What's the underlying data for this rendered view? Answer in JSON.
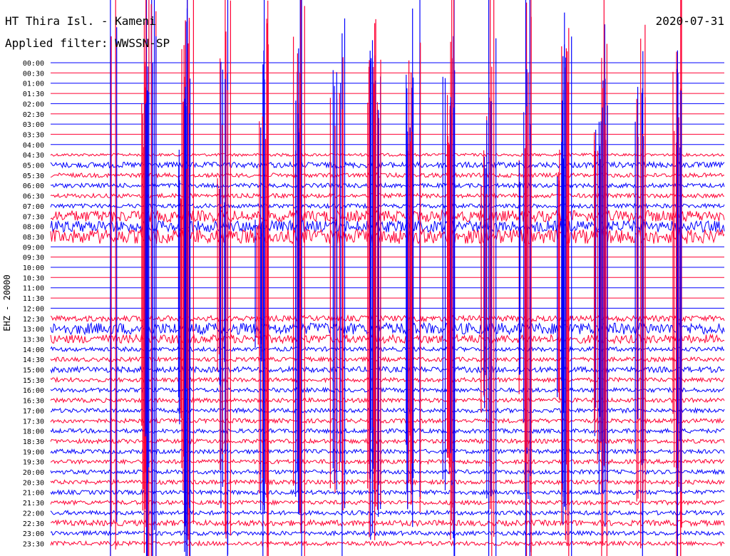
{
  "header": {
    "station": "HT Thira Isl. - Kameni",
    "filter": "Applied filter: WWSSN-SP",
    "date": "2020-07-31"
  },
  "ylabel": "EHZ - 20000",
  "colors": {
    "blue": "#0000ff",
    "red": "#ff0033",
    "background": "#ffffff"
  },
  "chart_data": {
    "type": "line",
    "title": "HT Thira Isl. - Kameni",
    "subtitle": "Applied filter: WWSSN-SP",
    "ylabel": "EHZ - 20000",
    "row_labels": [
      "00:00",
      "00:30",
      "01:00",
      "01:30",
      "02:00",
      "02:30",
      "03:00",
      "03:30",
      "04:00",
      "04:30",
      "05:00",
      "05:30",
      "06:00",
      "06:30",
      "07:00",
      "07:30",
      "08:00",
      "08:30",
      "09:00",
      "09:30",
      "10:00",
      "10:30",
      "11:00",
      "11:30",
      "12:00",
      "12:30",
      "13:00",
      "13:30",
      "14:00",
      "14:30",
      "15:00",
      "15:30",
      "16:00",
      "16:30",
      "17:00",
      "17:30",
      "18:00",
      "18:30",
      "19:00",
      "19:30",
      "20:00",
      "20:30",
      "21:00",
      "21:30",
      "22:00",
      "22:30",
      "23:00",
      "23:30"
    ],
    "row_colors": [
      "blue",
      "red"
    ],
    "noise_amplitude": [
      0,
      0,
      0,
      0,
      0,
      0,
      0,
      0,
      0,
      2,
      4,
      3,
      3,
      3,
      3,
      8,
      8,
      10,
      0,
      0,
      0,
      0,
      0,
      0,
      0,
      4,
      8,
      6,
      3,
      3,
      4,
      3,
      3,
      3,
      3,
      3,
      3,
      3,
      3,
      3,
      3,
      3,
      3,
      3,
      3,
      4,
      3,
      3
    ],
    "events": [
      {
        "minute": 285.5,
        "amplitude": 500
      },
      {
        "minute": 292,
        "amplitude": 480
      },
      {
        "minute": 298,
        "amplitude": 470
      },
      {
        "minute": 305,
        "amplitude": 450
      },
      {
        "minute": 315,
        "amplitude": 440
      },
      {
        "minute": 330,
        "amplitude": 420
      },
      {
        "minute": 350,
        "amplitude": 400
      },
      {
        "minute": 365,
        "amplitude": 380
      },
      {
        "minute": 380,
        "amplitude": 450
      },
      {
        "minute": 395,
        "amplitude": 470
      },
      {
        "minute": 410,
        "amplitude": 480
      },
      {
        "minute": 420,
        "amplitude": 500
      },
      {
        "minute": 430,
        "amplitude": 460
      },
      {
        "minute": 445,
        "amplitude": 420
      },
      {
        "minute": 455,
        "amplitude": 400
      },
      {
        "minute": 470,
        "amplitude": 430
      },
      {
        "minute": 485,
        "amplitude": 450
      },
      {
        "minute": 500,
        "amplitude": 380
      },
      {
        "minute": 515,
        "amplitude": 360
      },
      {
        "minute": 530,
        "amplitude": 320
      },
      {
        "minute": 545,
        "amplitude": 300
      },
      {
        "minute": 560,
        "amplitude": 310
      },
      {
        "minute": 575,
        "amplitude": 330
      },
      {
        "minute": 590,
        "amplitude": 300
      },
      {
        "minute": 605,
        "amplitude": 290
      },
      {
        "minute": 620,
        "amplitude": 310
      },
      {
        "minute": 635,
        "amplitude": 320
      },
      {
        "minute": 650,
        "amplitude": 340
      },
      {
        "minute": 660,
        "amplitude": 300
      },
      {
        "minute": 680,
        "amplitude": 310
      },
      {
        "minute": 695,
        "amplitude": 300
      },
      {
        "minute": 710,
        "amplitude": 320
      },
      {
        "minute": 720,
        "amplitude": 200
      },
      {
        "minute": 760,
        "amplitude": 150
      },
      {
        "minute": 815,
        "amplitude": 120
      },
      {
        "minute": 935,
        "amplitude": 350
      },
      {
        "minute": 945,
        "amplitude": 360
      },
      {
        "minute": 170,
        "amplitude": 380
      },
      {
        "minute": 180,
        "amplitude": 320
      },
      {
        "minute": 190,
        "amplitude": 300
      },
      {
        "minute": 200,
        "amplitude": 200
      },
      {
        "minute": 230,
        "amplitude": 180
      },
      {
        "minute": 260,
        "amplitude": 220
      },
      {
        "minute": 270,
        "amplitude": 250
      }
    ]
  }
}
